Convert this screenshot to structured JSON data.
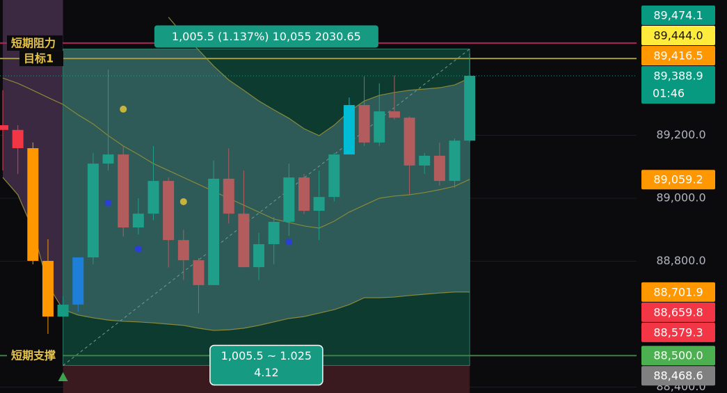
{
  "chart_data": {
    "type": "candlestick",
    "ylim": [
      88381.2,
      89629.8
    ],
    "yticks": [
      {
        "value": 88400,
        "label": "88,400.0"
      },
      {
        "value": 88800,
        "label": "88,800.0"
      },
      {
        "value": 89000,
        "label": "89,000.0"
      },
      {
        "value": 89200,
        "label": "89,200.0"
      }
    ],
    "grid": true,
    "candles": {
      "open": [
        89232,
        89217,
        89159,
        88801,
        88624,
        88662,
        88812,
        89110,
        89139,
        88907,
        88951,
        89055,
        88867,
        88803,
        88724,
        89062,
        88951,
        88781,
        88854,
        88925,
        89066,
        88960,
        89004,
        89139,
        89296,
        89177,
        89276,
        89256,
        89104,
        89135,
        89055,
        89183
      ],
      "high": [
        89343,
        89232,
        89177,
        88870,
        88690,
        88812,
        89144,
        89409,
        89166,
        89000,
        89166,
        89066,
        88900,
        88810,
        89120,
        89159,
        89088,
        88890,
        88940,
        89110,
        89077,
        89088,
        89144,
        89320,
        89387,
        89365,
        89390,
        89260,
        89144,
        89177,
        89190,
        89460
      ],
      "low": [
        89088,
        89077,
        88790,
        88569,
        88624,
        88640,
        88790,
        89088,
        88878,
        88885,
        88930,
        88780,
        88740,
        88635,
        88724,
        88920,
        88781,
        88740,
        88790,
        88880,
        88950,
        88867,
        88990,
        89139,
        89166,
        89166,
        89250,
        89011,
        89077,
        89040,
        89033,
        89177
      ],
      "close": [
        89217,
        89159,
        88801,
        88624,
        88662,
        88812,
        89110,
        89139,
        88907,
        88951,
        89055,
        88867,
        88803,
        88724,
        89062,
        88951,
        88781,
        88854,
        88925,
        89066,
        88960,
        89004,
        89139,
        89296,
        89177,
        89276,
        89256,
        89104,
        89135,
        89055,
        89183,
        89388.9
      ],
      "colors": [
        "#f23645",
        "#f23645",
        "#ff9800",
        "#ff9800",
        "#169b82",
        "#1e7fd8",
        "#1f9e89",
        "#1f9e89",
        "#b35c5e",
        "#1f9e89",
        "#1f9e89",
        "#b35c5e",
        "#b35c5e",
        "#b35c5e",
        "#1f9e89",
        "#b35c5e",
        "#b35c5e",
        "#1f9e89",
        "#1f9e89",
        "#1f9e89",
        "#b35c5e",
        "#1f9e89",
        "#1f9e89",
        "#00bcd4",
        "#b35c5e",
        "#1f9e89",
        "#b35c5e",
        "#b35c5e",
        "#1f9e89",
        "#b35c5e",
        "#1f9e89",
        "#1f9e89"
      ]
    },
    "bands": {
      "color": "#8a8a3a",
      "upper": [
        null,
        null,
        null,
        null,
        null,
        null,
        null,
        null,
        null,
        null,
        null,
        89575,
        89519,
        89471,
        89420,
        89376,
        89343,
        89309,
        89281,
        89254,
        89221,
        89199,
        89232,
        89276,
        89309,
        89327,
        89336,
        89343,
        89347,
        89351,
        89360,
        89382
      ],
      "middle": [
        89382,
        89365,
        89343,
        89320,
        89298,
        89265,
        89236,
        89199,
        89166,
        89139,
        89110,
        89088,
        89066,
        89044,
        89022,
        89000,
        88978,
        88956,
        88934,
        88923,
        88912,
        88905,
        88927,
        88956,
        88978,
        89000,
        89007,
        89011,
        89018,
        89027,
        89038,
        89060
      ],
      "lower": [
        89066,
        89011,
        88901,
        88724,
        88646,
        88629,
        88620,
        88613,
        88609,
        88607,
        88604,
        88600,
        88596,
        88587,
        88580,
        88582,
        88587,
        88596,
        88607,
        88618,
        88624,
        88635,
        88646,
        88662,
        88684,
        88684,
        88686,
        88691,
        88695,
        88699,
        88702,
        88702
      ]
    },
    "markers": [
      {
        "index": 8,
        "value": 89283,
        "color": "#c8b43a"
      },
      {
        "index": 12,
        "value": 88989,
        "color": "#c8b43a"
      },
      {
        "index": 7,
        "value": 88985,
        "color": "#2a3fd6"
      },
      {
        "index": 9,
        "value": 88839,
        "color": "#2a3fd6"
      },
      {
        "index": 19,
        "value": 88861,
        "color": "#2a3fd6"
      }
    ],
    "levels": [
      {
        "label": "短期阻力",
        "value": 89493,
        "color": "#b0245a"
      },
      {
        "label": "目标1",
        "value": 89444.0,
        "color": "#a39a3a"
      },
      {
        "label": "短期支撑",
        "value": 88500.0,
        "color": "#3f7f45"
      }
    ],
    "measure": {
      "from_index": 4,
      "to_index": 31,
      "top": 89474.1,
      "bottom": 88468.6,
      "label": "1,005.5 (1.137%) 10,055 2030.65",
      "info": [
        "1,005.5 ~ 1.025",
        "4.12"
      ]
    },
    "badges": [
      {
        "value": 89474.1,
        "label": "89,474.1",
        "color": "#089981"
      },
      {
        "value": 89444.0,
        "label": "89,444.0",
        "color": "#ffeb3b"
      },
      {
        "value": 89416.5,
        "label": "89,416.5",
        "color": "#ff9800"
      },
      {
        "value": 89388.9,
        "label": "89,388.9",
        "sub": "01:46",
        "color": "#089981"
      },
      {
        "value": 89059.2,
        "label": "89,059.2",
        "color": "#ff9800"
      },
      {
        "value": 88701.9,
        "label": "88,701.9",
        "color": "#ff9800"
      },
      {
        "value": 88659.8,
        "label": "88,659.8",
        "color": "#f23645"
      },
      {
        "value": 88579.3,
        "label": "88,579.3",
        "color": "#f23645"
      },
      {
        "value": 88500.0,
        "label": "88,500.0",
        "color": "#4caf50"
      },
      {
        "value": 88468.6,
        "label": "88,468.6",
        "color": "#808080"
      }
    ]
  }
}
